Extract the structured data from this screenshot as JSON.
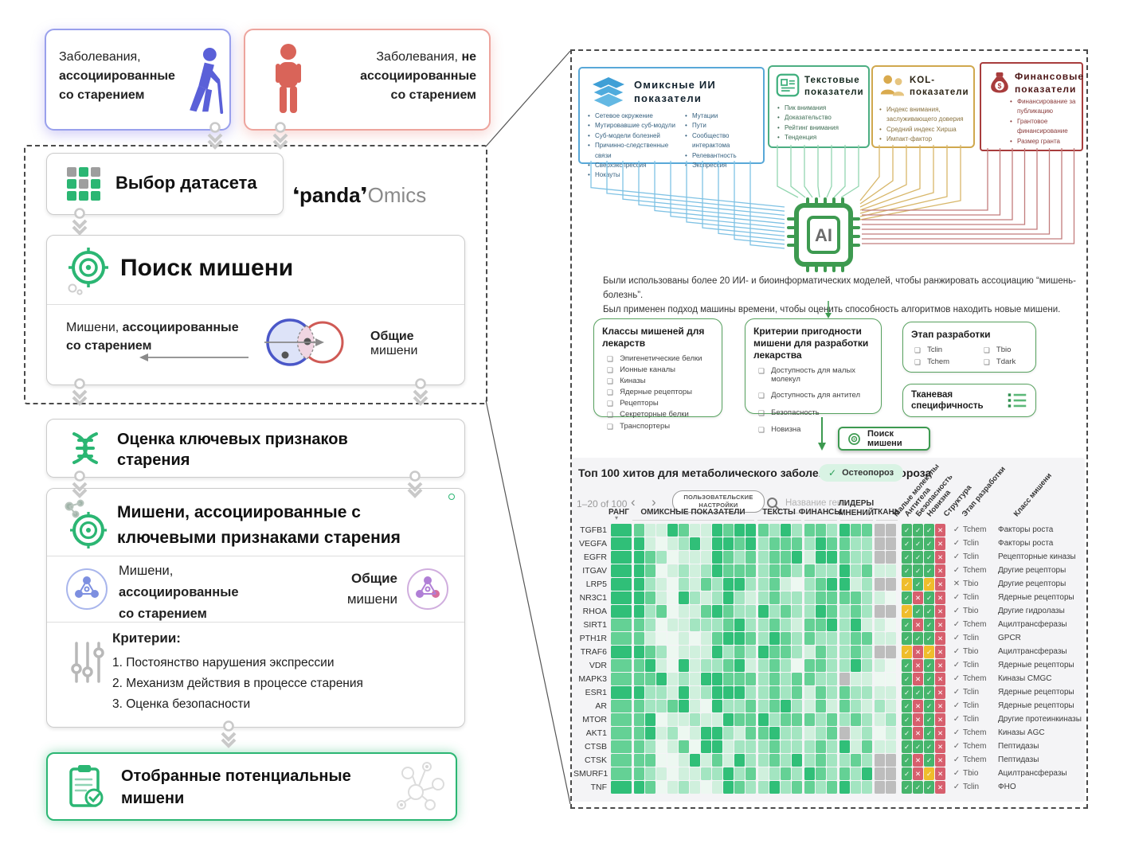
{
  "left": {
    "box_aging": {
      "t1": "Заболевания,",
      "t2": "ассоциированные",
      "t3": "со старением"
    },
    "box_nonaging": {
      "t1a": "Заболевания,",
      "t1b": "не",
      "t2": "ассоциированные",
      "t3": "со старением"
    },
    "dataset_card": {
      "title": "Выбор датасета"
    },
    "logo": {
      "brand": "panda",
      "suffix": "Omics"
    },
    "target_card": {
      "title": "Поиск мишени",
      "venn_left_a": "Мишени, ",
      "venn_left_b": "ассоциированные",
      "venn_left_c": "со старением",
      "venn_right_a": "Общие",
      "venn_right_b": " мишени"
    },
    "hallmarks_card": {
      "l1": "Оценка ключевых признаков",
      "l2": "старения"
    },
    "assoc_card": {
      "l1": "Мишени, ассоциированные с",
      "l2": "ключевыми признаками старения",
      "mid_left1": "Мишени,",
      "mid_left2": "ассоциированные",
      "mid_left3": "со старением",
      "mid_right1": "Общие",
      "mid_right2": "мишени",
      "criteria_title": "Критерии:",
      "criteria": [
        "1. Постоянство нарушения экспрессии",
        "2. Механизм действия в процессе старения",
        "3. Оценка безопасности"
      ]
    },
    "selected_card": {
      "l1": "Отобранные потенциальные",
      "l2": "мишени"
    }
  },
  "right": {
    "omics_box": {
      "t1": "Омиксные ИИ",
      "t2": "показатели",
      "col1": [
        "Сетевое окружение",
        "Мутировавшие суб-модули",
        "Суб-модели болезней",
        "Причинно-следственные связи",
        "Сверхэкспрессия",
        "Нокауты"
      ],
      "col2": [
        "Мутации",
        "Пути",
        "Сообщество интерактома",
        "Релевантность",
        "Экспрессия"
      ]
    },
    "text_box": {
      "t1": "Текстовые",
      "t2": "показатели",
      "items": [
        "Пик внимания",
        "Доказательство",
        "Рейтинг внимания",
        "Тенденция"
      ]
    },
    "kol_box": {
      "t1": "KOL-",
      "t2": "показатели",
      "items": [
        "Индекс внимания, заслуживающего доверия",
        "Средний индекс Хирша",
        "Импакт-фактор"
      ]
    },
    "fin_box": {
      "t1": "Финансовые",
      "t2": "показатели",
      "items": [
        "Финансирование за публикацию",
        "Грантовое финансирование",
        "Размер гранта"
      ]
    },
    "ai_label": "AI",
    "desc1": "Были использованы более 20 ИИ- и биоинформатических моделей, чтобы ранжировать ассоциацию “мишень-болезнь”.",
    "desc2": "Был применен подход машины времени, чтобы оценить способность алгоритмов находить новые мишени.",
    "classes_box": {
      "title": "Классы мишеней для лекарств",
      "items": [
        "Эпигенетические белки",
        "Ионные каналы",
        "Киназы",
        "Ядерные рецепторы",
        "Рецепторы",
        "Секреторные белки",
        "Транспортеры"
      ]
    },
    "criteria_box": {
      "title": "Критерии пригодности мишени для разработки лекарства",
      "items": [
        "Доступность для малых молекул",
        "Доступность для антител",
        "Безопасность",
        "Новизна"
      ]
    },
    "stage_box": {
      "title": "Этап разработки",
      "items": [
        "Tclin",
        "Tchem",
        "Tbio",
        "Tdark"
      ]
    },
    "tissue_box": {
      "title": "Тканевая специфичность"
    },
    "search_button": "Поиск мишени"
  },
  "table": {
    "title": "Топ 100 хитов для метаболического заболевания - остеопороза",
    "chip": "Остеопороз",
    "pagination": "1–20 of 100",
    "prev": "‹",
    "next": "›",
    "settings_line1": "ПОЛЬЗОВАТЕЛЬСКИЕ",
    "settings_line2": "НАСТРОЙКИ",
    "search_placeholder": "Название гена",
    "group_headers": [
      "РАНГ",
      "ОМИКСНЫЕ ПОКАЗАТЕЛИ",
      "ТЕКСТЫ",
      "ФИНАНСЫ",
      "ЛИДЕРЫ МНЕНИЙ",
      "ТКАНЬ"
    ],
    "rotated_headers": [
      "Малые молекулы",
      "Антитела",
      "Безопасность",
      "Новизна",
      "Структура",
      "Этап разработки",
      "Класс мишени"
    ],
    "rows": [
      {
        "gene": "TGFB1",
        "rank": 4,
        "omics": [
          3,
          1,
          1,
          4,
          3,
          1,
          1,
          4,
          3,
          4,
          4
        ],
        "texts": [
          3,
          2,
          4,
          2
        ],
        "fin": [
          3,
          3,
          2
        ],
        "kol": [
          4,
          3,
          3
        ],
        "tissue": [
          "g",
          "g"
        ],
        "flags": [
          "g",
          "g",
          "g",
          "r"
        ],
        "structure": "v",
        "stage": "Tchem",
        "target_class": "Факторы роста"
      },
      {
        "gene": "VEGFA",
        "rank": 4,
        "omics": [
          4,
          1,
          0,
          1,
          2,
          4,
          1,
          4,
          4,
          3,
          4
        ],
        "texts": [
          2,
          3,
          3,
          3
        ],
        "fin": [
          2,
          4,
          3
        ],
        "kol": [
          3,
          2,
          2
        ],
        "tissue": [
          "g",
          "g"
        ],
        "flags": [
          "g",
          "g",
          "g",
          "r"
        ],
        "structure": "v",
        "stage": "Tclin",
        "target_class": "Факторы роста"
      },
      {
        "gene": "EGFR",
        "rank": 4,
        "omics": [
          4,
          3,
          2,
          0,
          1,
          1,
          1,
          4,
          3,
          2,
          3
        ],
        "texts": [
          2,
          3,
          3,
          4
        ],
        "fin": [
          1,
          4,
          4
        ],
        "kol": [
          3,
          2,
          2
        ],
        "tissue": [
          "g",
          "g"
        ],
        "flags": [
          "g",
          "g",
          "g",
          "r"
        ],
        "structure": "v",
        "stage": "Tclin",
        "target_class": "Рецепторные киназы"
      },
      {
        "gene": "ITGAV",
        "rank": 4,
        "omics": [
          4,
          3,
          0,
          1,
          2,
          1,
          2,
          4,
          3,
          3,
          3
        ],
        "texts": [
          2,
          3,
          3,
          2
        ],
        "fin": [
          3,
          2,
          2
        ],
        "kol": [
          4,
          2,
          3
        ],
        "tissue": [
          1,
          1
        ],
        "flags": [
          "g",
          "g",
          "g",
          "r"
        ],
        "structure": "v",
        "stage": "Tchem",
        "target_class": "Другие рецепторы"
      },
      {
        "gene": "LRP5",
        "rank": 4,
        "omics": [
          4,
          2,
          1,
          0,
          2,
          1,
          3,
          2,
          4,
          4,
          2
        ],
        "texts": [
          2,
          3,
          1,
          0
        ],
        "fin": [
          2,
          3,
          4
        ],
        "kol": [
          4,
          1,
          2
        ],
        "tissue": [
          "g",
          "g"
        ],
        "flags": [
          "y",
          "g",
          "y",
          "r"
        ],
        "structure": "x",
        "stage": "Tbio",
        "target_class": "Другие рецепторы"
      },
      {
        "gene": "NR3C1",
        "rank": 4,
        "omics": [
          4,
          3,
          1,
          0,
          4,
          2,
          1,
          2,
          4,
          2,
          1
        ],
        "texts": [
          2,
          3,
          2,
          2
        ],
        "fin": [
          2,
          3,
          3
        ],
        "kol": [
          3,
          3,
          2
        ],
        "tissue": [
          1,
          0
        ],
        "flags": [
          "g",
          "r",
          "g",
          "r"
        ],
        "structure": "v",
        "stage": "Tclin",
        "target_class": "Ядерные рецепторы"
      },
      {
        "gene": "RHOA",
        "rank": 4,
        "omics": [
          4,
          2,
          3,
          0,
          1,
          1,
          3,
          4,
          3,
          2,
          2
        ],
        "texts": [
          4,
          2,
          3,
          2
        ],
        "fin": [
          2,
          4,
          3
        ],
        "kol": [
          2,
          3,
          2
        ],
        "tissue": [
          "g",
          "g"
        ],
        "flags": [
          "y",
          "g",
          "g",
          "r"
        ],
        "structure": "v",
        "stage": "Tbio",
        "target_class": "Другие гидролазы"
      },
      {
        "gene": "SIRT1",
        "rank": 3,
        "omics": [
          3,
          2,
          0,
          1,
          1,
          2,
          2,
          2,
          3,
          4,
          2
        ],
        "texts": [
          2,
          3,
          2,
          1
        ],
        "fin": [
          3,
          3,
          4
        ],
        "kol": [
          2,
          4,
          1
        ],
        "tissue": [
          1,
          0
        ],
        "flags": [
          "g",
          "r",
          "g",
          "r"
        ],
        "structure": "v",
        "stage": "Tchem",
        "target_class": "Ацилтрансферазы"
      },
      {
        "gene": "PTH1R",
        "rank": 3,
        "omics": [
          3,
          1,
          0,
          0,
          1,
          0,
          1,
          3,
          4,
          4,
          3
        ],
        "texts": [
          2,
          4,
          3,
          2
        ],
        "fin": [
          3,
          2,
          2
        ],
        "kol": [
          2,
          3,
          3
        ],
        "tissue": [
          1,
          1
        ],
        "flags": [
          "g",
          "g",
          "g",
          "r"
        ],
        "structure": "v",
        "stage": "Tclin",
        "target_class": "GPCR"
      },
      {
        "gene": "TRAF6",
        "rank": 4,
        "omics": [
          4,
          3,
          2,
          0,
          1,
          1,
          1,
          4,
          2,
          3,
          2
        ],
        "texts": [
          4,
          3,
          3,
          2
        ],
        "fin": [
          1,
          3,
          2
        ],
        "kol": [
          2,
          3,
          2
        ],
        "tissue": [
          "g",
          "g"
        ],
        "flags": [
          "y",
          "r",
          "y",
          "r"
        ],
        "structure": "v",
        "stage": "Tbio",
        "target_class": "Ацилтрансферазы"
      },
      {
        "gene": "VDR",
        "rank": 3,
        "omics": [
          3,
          4,
          1,
          0,
          4,
          1,
          2,
          2,
          3,
          4,
          1
        ],
        "texts": [
          2,
          3,
          2,
          0
        ],
        "fin": [
          3,
          3,
          2
        ],
        "kol": [
          2,
          4,
          2
        ],
        "tissue": [
          1,
          0
        ],
        "flags": [
          "g",
          "r",
          "g",
          "r"
        ],
        "structure": "v",
        "stage": "Tclin",
        "target_class": "Ядерные рецепторы"
      },
      {
        "gene": "MAPK3",
        "rank": 3,
        "omics": [
          3,
          3,
          4,
          1,
          2,
          1,
          4,
          4,
          3,
          3,
          3
        ],
        "texts": [
          2,
          3,
          2,
          3
        ],
        "fin": [
          3,
          2,
          2
        ],
        "kol": [
          "g",
          1,
          1
        ],
        "tissue": [
          0,
          0
        ],
        "flags": [
          "g",
          "r",
          "g",
          "r"
        ],
        "structure": "v",
        "stage": "Tchem",
        "target_class": "Киназы CMGC"
      },
      {
        "gene": "ESR1",
        "rank": 4,
        "omics": [
          4,
          2,
          2,
          1,
          4,
          1,
          2,
          4,
          4,
          4,
          2
        ],
        "texts": [
          2,
          3,
          2,
          3
        ],
        "fin": [
          1,
          3,
          2
        ],
        "kol": [
          3,
          2,
          2
        ],
        "tissue": [
          1,
          1
        ],
        "flags": [
          "g",
          "g",
          "g",
          "r"
        ],
        "structure": "v",
        "stage": "Tclin",
        "target_class": "Ядерные рецепторы"
      },
      {
        "gene": "AR",
        "rank": 3,
        "omics": [
          3,
          2,
          2,
          3,
          4,
          1,
          0,
          4,
          2,
          2,
          3
        ],
        "texts": [
          2,
          3,
          4,
          2
        ],
        "fin": [
          1,
          3,
          1
        ],
        "kol": [
          3,
          2,
          1
        ],
        "tissue": [
          2,
          1
        ],
        "flags": [
          "g",
          "r",
          "g",
          "r"
        ],
        "structure": "v",
        "stage": "Tclin",
        "target_class": "Ядерные рецепторы"
      },
      {
        "gene": "MTOR",
        "rank": 3,
        "omics": [
          3,
          4,
          0,
          1,
          1,
          2,
          1,
          1,
          4,
          3,
          3
        ],
        "texts": [
          4,
          2,
          3,
          3
        ],
        "fin": [
          3,
          2,
          3
        ],
        "kol": [
          2,
          3,
          2
        ],
        "tissue": [
          1,
          2
        ],
        "flags": [
          "g",
          "r",
          "g",
          "r"
        ],
        "structure": "v",
        "stage": "Tclin",
        "target_class": "Другие протеинкиназы"
      },
      {
        "gene": "AKT1",
        "rank": 3,
        "omics": [
          3,
          4,
          1,
          2,
          0,
          1,
          4,
          4,
          2,
          1,
          3
        ],
        "texts": [
          3,
          4,
          2,
          2
        ],
        "fin": [
          1,
          2,
          3
        ],
        "kol": [
          "g",
          1,
          2
        ],
        "tissue": [
          0,
          1
        ],
        "flags": [
          "g",
          "r",
          "g",
          "r"
        ],
        "structure": "v",
        "stage": "Tchem",
        "target_class": "Киназы AGC"
      },
      {
        "gene": "CTSB",
        "rank": 3,
        "omics": [
          3,
          2,
          0,
          1,
          3,
          0,
          4,
          4,
          1,
          2,
          2
        ],
        "texts": [
          2,
          3,
          2,
          2
        ],
        "fin": [
          2,
          3,
          2
        ],
        "kol": [
          4,
          1,
          3
        ],
        "tissue": [
          1,
          1
        ],
        "flags": [
          "g",
          "g",
          "g",
          "r"
        ],
        "structure": "v",
        "stage": "Tchem",
        "target_class": "Пептидазы"
      },
      {
        "gene": "CTSK",
        "rank": 3,
        "omics": [
          3,
          3,
          0,
          0,
          1,
          4,
          1,
          3,
          1,
          4,
          2
        ],
        "texts": [
          2,
          3,
          2,
          4
        ],
        "fin": [
          2,
          3,
          2
        ],
        "kol": [
          2,
          3,
          2
        ],
        "tissue": [
          "g",
          "g"
        ],
        "flags": [
          "g",
          "r",
          "g",
          "r"
        ],
        "structure": "v",
        "stage": "Tchem",
        "target_class": "Пептидазы"
      },
      {
        "gene": "SMURF1",
        "rank": 3,
        "omics": [
          3,
          2,
          1,
          0,
          1,
          1,
          2,
          2,
          4,
          2,
          3
        ],
        "texts": [
          1,
          2,
          3,
          2
        ],
        "fin": [
          4,
          3,
          2
        ],
        "kol": [
          3,
          2,
          4
        ],
        "tissue": [
          "g",
          "g"
        ],
        "flags": [
          "g",
          "r",
          "y",
          "r"
        ],
        "structure": "v",
        "stage": "Tbio",
        "target_class": "Ацилтрансферазы"
      },
      {
        "gene": "TNF",
        "rank": 4,
        "omics": [
          4,
          3,
          0,
          1,
          2,
          1,
          0,
          1,
          4,
          3,
          2
        ],
        "texts": [
          2,
          4,
          2,
          3
        ],
        "fin": [
          3,
          2,
          3
        ],
        "kol": [
          4,
          2,
          2
        ],
        "tissue": [
          "g",
          "g"
        ],
        "flags": [
          "g",
          "g",
          "g",
          "r"
        ],
        "structure": "v",
        "stage": "Tclin",
        "target_class": "ФНО"
      }
    ]
  },
  "colors": {
    "accent_green": "#2bb673",
    "line_blue": "#7fc2e4",
    "line_green": "#93d6b0",
    "line_yellow": "#d8b76a",
    "line_red": "#c27c7c",
    "heat_scale": [
      "#edf8f1",
      "#d0f0dd",
      "#a3e5c1",
      "#64d195",
      "#30bf78"
    ],
    "cell_gray": "#bdbdbd",
    "flag_green": "#46b56c",
    "flag_yellow": "#efbd2c",
    "flag_red": "#d75f6d",
    "chip_bg": "#d9f3e4",
    "arrow_gray": "#c9c9c9"
  }
}
